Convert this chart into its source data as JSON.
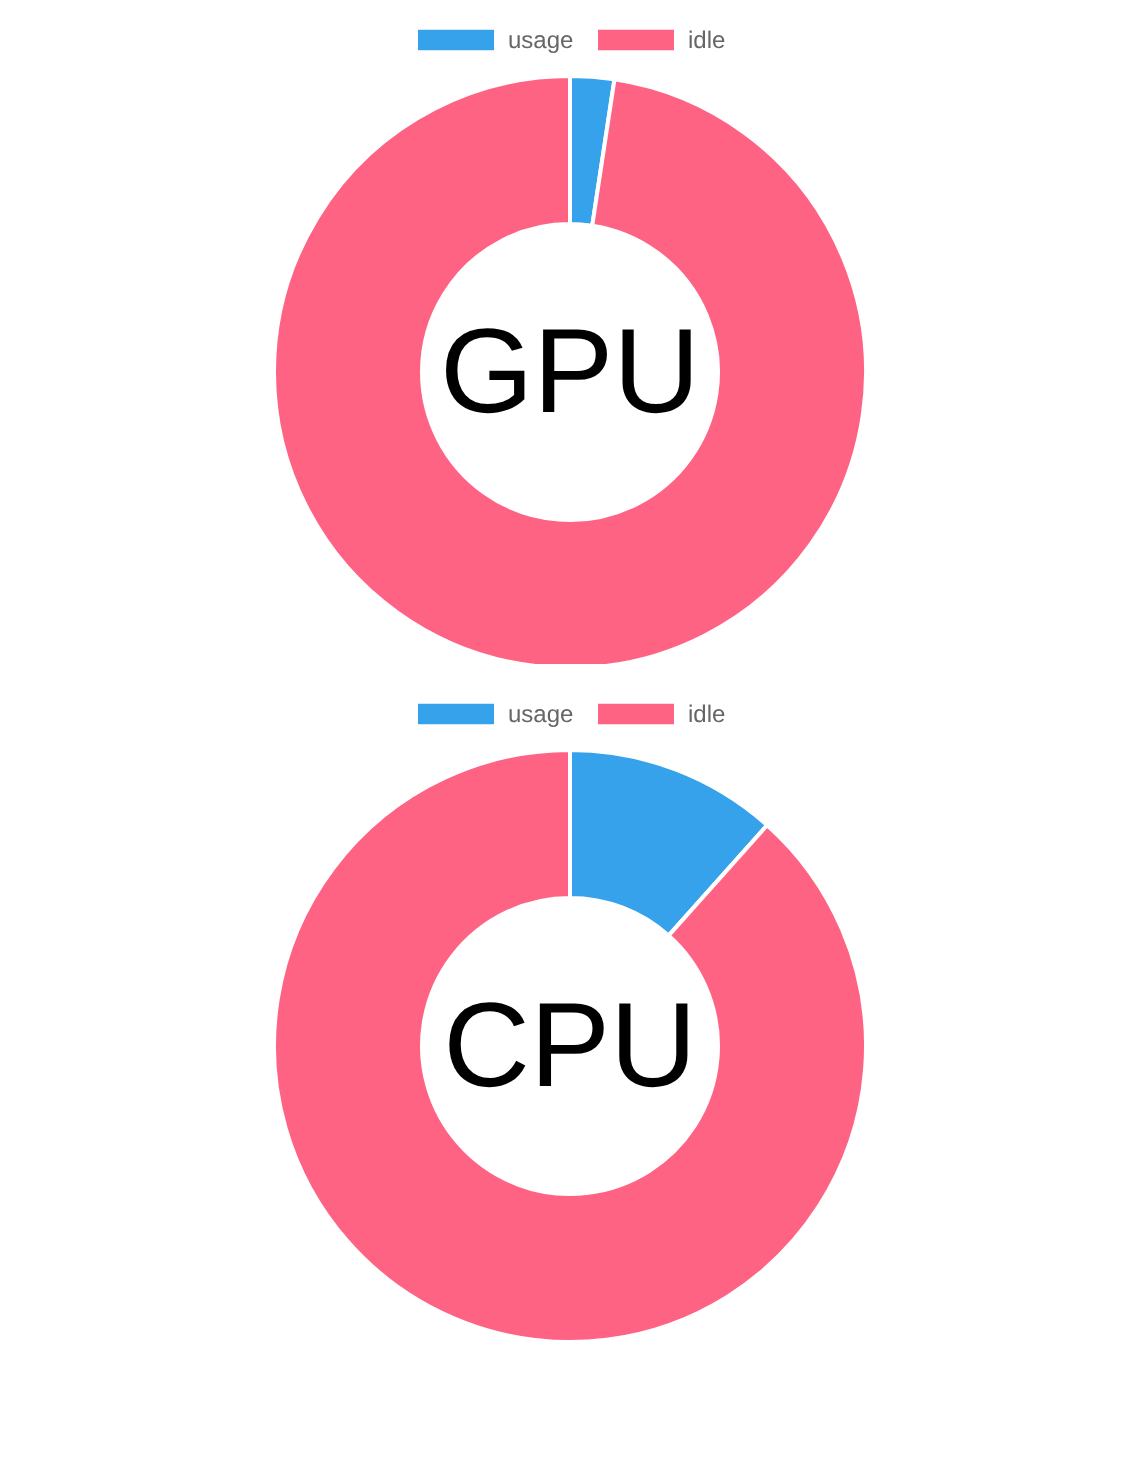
{
  "chart_data": [
    {
      "type": "donut",
      "title": "GPU",
      "categories": [
        "usage",
        "idle"
      ],
      "values": [
        2.4,
        97.6
      ],
      "colors": [
        "#36a2eb",
        "#ff6384"
      ],
      "legend": "top"
    },
    {
      "type": "donut",
      "title": "CPU",
      "categories": [
        "usage",
        "idle"
      ],
      "values": [
        11.6,
        88.4
      ],
      "colors": [
        "#36a2eb",
        "#ff6384"
      ],
      "legend": "top"
    }
  ]
}
